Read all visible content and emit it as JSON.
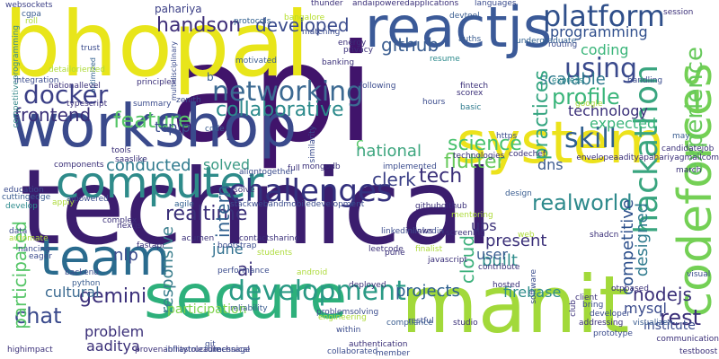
{
  "words": [
    {
      "text": "technical",
      "color": "#3b1d6e"
    },
    {
      "text": "api",
      "color": "#40146b"
    },
    {
      "text": "workshop",
      "color": "#3a4a8c"
    },
    {
      "text": "bhopal",
      "color": "#e8e51a"
    },
    {
      "text": "manit",
      "color": "#a2d93a"
    },
    {
      "text": "secure",
      "color": "#2db07b"
    },
    {
      "text": "system",
      "color": "#ece21c"
    },
    {
      "text": "reactjs",
      "color": "#3b5a98"
    },
    {
      "text": "codeforces",
      "color": "#74d055"
    },
    {
      "text": "team",
      "color": "#2a6b8e"
    },
    {
      "text": "computer",
      "color": "#2e8b8a"
    },
    {
      "text": "challenges",
      "color": "#34317e"
    },
    {
      "text": "development",
      "color": "#2a9a85"
    },
    {
      "text": "hackathon",
      "color": "#39a57f"
    },
    {
      "text": "platform",
      "color": "#2f4f8a"
    },
    {
      "text": "using",
      "color": "#3a4a8c"
    },
    {
      "text": "networking",
      "color": "#3c6a92"
    },
    {
      "text": "docker",
      "color": "#3b3f86"
    },
    {
      "text": "experience",
      "color": "#67c95b"
    },
    {
      "text": "skill",
      "color": "#2f5f8e"
    },
    {
      "text": "profile",
      "color": "#3ab57a"
    },
    {
      "text": "feature",
      "color": "#56c667"
    },
    {
      "text": "frontend",
      "color": "#3a2f78"
    },
    {
      "text": "collaborative",
      "color": "#2c8a8c"
    },
    {
      "text": "handson",
      "color": "#3d2d78"
    },
    {
      "text": "developed",
      "color": "#3b4c8d"
    },
    {
      "text": "github",
      "color": "#3a5d90"
    },
    {
      "text": "scalable",
      "color": "#2e7a8d"
    },
    {
      "text": "programming",
      "color": "#2f4e8c"
    },
    {
      "text": "coding",
      "color": "#3ab57a"
    },
    {
      "text": "technology",
      "color": "#3a2f78"
    },
    {
      "text": "practices",
      "color": "#34a580"
    },
    {
      "text": "expected",
      "color": "#3ab57a"
    },
    {
      "text": "science",
      "color": "#47c16e"
    },
    {
      "text": "flutter",
      "color": "#67c95b"
    },
    {
      "text": "national",
      "color": "#3ea67f"
    },
    {
      "text": "tech",
      "color": "#3a2f78"
    },
    {
      "text": "clerk",
      "color": "#3a3f86"
    },
    {
      "text": "realworld",
      "color": "#2e8a8c"
    },
    {
      "text": "dns",
      "color": "#3c5a8f"
    },
    {
      "text": "conducted",
      "color": "#2f7a8d"
    },
    {
      "text": "solved",
      "color": "#3a9a84"
    },
    {
      "text": "tcpip",
      "color": "#3b4c8d"
    },
    {
      "text": "realtime",
      "color": "#3a2f78"
    },
    {
      "text": "gemini",
      "color": "#3b2f7a"
    },
    {
      "text": "projects",
      "color": "#2c5e8d"
    },
    {
      "text": "firebase",
      "color": "#2f8d8b"
    },
    {
      "text": "nodejs",
      "color": "#3a2f78"
    },
    {
      "text": "mysql",
      "color": "#3b4c8d"
    },
    {
      "text": "chat",
      "color": "#3a4a8c"
    },
    {
      "text": "problem",
      "color": "#3a2f78"
    },
    {
      "text": "aaditya",
      "color": "#3a2f78"
    },
    {
      "text": "cultural",
      "color": "#3b6a91"
    },
    {
      "text": "participated",
      "color": "#55c567"
    },
    {
      "text": "responsive",
      "color": "#3a7e8d"
    },
    {
      "text": "cloud",
      "color": "#3bb07b"
    },
    {
      "text": "competitive",
      "color": "#2c4f8b"
    },
    {
      "text": "designed",
      "color": "#2e7a8d"
    },
    {
      "text": "built",
      "color": "#2f8d8b"
    },
    {
      "text": "present",
      "color": "#3a2f78"
    },
    {
      "text": "user",
      "color": "#3a5d90"
    },
    {
      "text": "ai",
      "color": "#3a2f78"
    },
    {
      "text": "nlp",
      "color": "#3b4c8d"
    },
    {
      "text": "june",
      "color": "#2f6f8e"
    },
    {
      "text": "intern",
      "color": "#2f5f8e"
    },
    {
      "text": "ubs",
      "color": "#3a2f78"
    },
    {
      "text": "rest",
      "color": "#3a2f78"
    },
    {
      "text": "institute",
      "color": "#3b4c8d"
    },
    {
      "text": "participation",
      "color": "#7fd34e"
    },
    {
      "text": "pahariya",
      "color": "#3b3f86"
    },
    {
      "text": "c",
      "color": "#55c567"
    },
    {
      "text": "b",
      "color": "#3a5d90"
    },
    {
      "text": "websockets",
      "color": "#3b3f86"
    },
    {
      "text": "cgpa",
      "color": "#3a5d90"
    },
    {
      "text": "roll",
      "color": "#aedb3c"
    },
    {
      "text": "competitiveprogramming",
      "color": "#3a8a8c"
    },
    {
      "text": "trust",
      "color": "#3b4c8d"
    },
    {
      "text": "optimized",
      "color": "#2f5f8e"
    },
    {
      "text": "integration",
      "color": "#3b4c8d"
    },
    {
      "text": "detailoriented",
      "color": "#aedb3c"
    },
    {
      "text": "principles",
      "color": "#3a2f78"
    },
    {
      "text": "multidisciplinary",
      "color": "#3b4c8d"
    },
    {
      "text": "motivated",
      "color": "#3a5d90"
    },
    {
      "text": "protocols",
      "color": "#2f5f8e"
    },
    {
      "text": "bangalore",
      "color": "#b5de2b"
    },
    {
      "text": "thunder",
      "color": "#3a2f78"
    },
    {
      "text": "andaipoweredapplications",
      "color": "#3a2f78"
    },
    {
      "text": "languages",
      "color": "#3b4c8d"
    },
    {
      "text": "devtool",
      "color": "#3a5d90"
    },
    {
      "text": "matching",
      "color": "#3b4c8d"
    },
    {
      "text": "energy",
      "color": "#3a2f78"
    },
    {
      "text": "privacy",
      "color": "#3a2f78"
    },
    {
      "text": "banking",
      "color": "#3a2f78"
    },
    {
      "text": "auths",
      "color": "#3a5d90"
    },
    {
      "text": "resume",
      "color": "#2c8a8c"
    },
    {
      "text": "undergraduate",
      "color": "#2f5f8e"
    },
    {
      "text": "routing",
      "color": "#3b4c8d"
    },
    {
      "text": "handling",
      "color": "#3b4c8d"
    },
    {
      "text": "session",
      "color": "#3a2f78"
    },
    {
      "text": "express",
      "color": "#2c8a8c"
    },
    {
      "text": "google",
      "color": "#aedb3c"
    },
    {
      "text": "fintech",
      "color": "#3a2f78"
    },
    {
      "text": "scorex",
      "color": "#3a2f78"
    },
    {
      "text": "following",
      "color": "#3b4c8d"
    },
    {
      "text": "hours",
      "color": "#3b4c8d"
    },
    {
      "text": "basic",
      "color": "#2f7a8d"
    },
    {
      "text": "zenith",
      "color": "#3b4c8d"
    },
    {
      "text": "summary",
      "color": "#3b4c8d"
    },
    {
      "text": "nationallevel",
      "color": "#3a2f78"
    },
    {
      "text": "typescript",
      "color": "#3a2f78"
    },
    {
      "text": "tools",
      "color": "#3a2f78"
    },
    {
      "text": "saaslike",
      "color": "#3a2f78"
    },
    {
      "text": "code",
      "color": "#3a5d90"
    },
    {
      "text": "similarity",
      "color": "#3b4c8d"
    },
    {
      "text": "https",
      "color": "#3b4c8d"
    },
    {
      "text": "technologies",
      "color": "#3a2f78"
    },
    {
      "text": "codechef",
      "color": "#3a2f78"
    },
    {
      "text": "may",
      "color": "#3a5d90"
    },
    {
      "text": "candidatejob",
      "color": "#3a2f78"
    },
    {
      "text": "envelopeaadityapahariyagmailcom",
      "color": "#3a2f78"
    },
    {
      "text": "march",
      "color": "#3a2f78"
    },
    {
      "text": "components",
      "color": "#3a2f78"
    },
    {
      "text": "cuttingedge",
      "color": "#3a5d90"
    },
    {
      "text": "full",
      "color": "#3a2f78"
    },
    {
      "text": "mongodb",
      "color": "#3a2f78"
    },
    {
      "text": "implemented",
      "color": "#3b4c8d"
    },
    {
      "text": "aligntogether",
      "color": "#3b4c8d"
    },
    {
      "text": "education",
      "color": "#3b4c8d"
    },
    {
      "text": "develop",
      "color": "#2c8a8c"
    },
    {
      "text": "apply",
      "color": "#aedb3c"
    },
    {
      "text": "aipowered",
      "color": "#3b4c8d"
    },
    {
      "text": "agile",
      "color": "#2f5f8e"
    },
    {
      "text": "solve",
      "color": "#3a2f78"
    },
    {
      "text": "stackwebandmobiledevelopment",
      "color": "#3b4c8d"
    },
    {
      "text": "githubgithub",
      "color": "#3a2f78"
    },
    {
      "text": "design",
      "color": "#3a5d90"
    },
    {
      "text": "mentoring",
      "color": "#aedb3c"
    },
    {
      "text": "data",
      "color": "#3b4c8d"
    },
    {
      "text": "complex",
      "color": "#3a2f78"
    },
    {
      "text": "nextjs",
      "color": "#3a2f78"
    },
    {
      "text": "linkedinlinkedin",
      "color": "#3b4c8d"
    },
    {
      "text": "acumen",
      "color": "#3a2f78"
    },
    {
      "text": "screening",
      "color": "#3a2f78"
    },
    {
      "text": "aws",
      "color": "#3a2f78"
    },
    {
      "text": "web",
      "color": "#aedb3c"
    },
    {
      "text": "shadcn",
      "color": "#3a2f78"
    },
    {
      "text": "automate",
      "color": "#aedb3c"
    },
    {
      "text": "nancing",
      "color": "#3b4c8d"
    },
    {
      "text": "eager",
      "color": "#3b4c8d"
    },
    {
      "text": "fastapi",
      "color": "#3a2f78"
    },
    {
      "text": "contactsharing",
      "color": "#3a2f78"
    },
    {
      "text": "bootstrap",
      "color": "#3b4c8d"
    },
    {
      "text": "students",
      "color": "#aedb3c"
    },
    {
      "text": "leetcode",
      "color": "#3a2f78"
    },
    {
      "text": "finalist",
      "color": "#aedb3c"
    },
    {
      "text": "javascript",
      "color": "#3a2f78"
    },
    {
      "text": "pune",
      "color": "#3a2f78"
    },
    {
      "text": "contribute",
      "color": "#3a2f78"
    },
    {
      "text": "backend",
      "color": "#3b4c8d"
    },
    {
      "text": "performance",
      "color": "#3b4c8d"
    },
    {
      "text": "android",
      "color": "#aedb3c"
    },
    {
      "text": "software",
      "color": "#3b4c8d"
    },
    {
      "text": "visual",
      "color": "#3b4c8d"
    },
    {
      "text": "python",
      "color": "#3a5d90"
    },
    {
      "text": "deployed",
      "color": "#3a2f78"
    },
    {
      "text": "hosted",
      "color": "#3a2f78"
    },
    {
      "text": "otpbased",
      "color": "#3a2f78"
    },
    {
      "text": "client",
      "color": "#3a2f78"
    },
    {
      "text": "bring",
      "color": "#3b4c8d"
    },
    {
      "text": "reliability",
      "color": "#3a5d90"
    },
    {
      "text": "problemsolving",
      "color": "#3b4c8d"
    },
    {
      "text": "restful",
      "color": "#3b4c8d"
    },
    {
      "text": "engineering",
      "color": "#aedb3c"
    },
    {
      "text": "compliance",
      "color": "#3a5d90"
    },
    {
      "text": "studio",
      "color": "#3a2f78"
    },
    {
      "text": "club",
      "color": "#3a2f78"
    },
    {
      "text": "developer",
      "color": "#3b4c8d"
    },
    {
      "text": "addressing",
      "color": "#3a2f78"
    },
    {
      "text": "prototype",
      "color": "#3b4c8d"
    },
    {
      "text": "visualizer",
      "color": "#3a5d90"
    },
    {
      "text": "communication",
      "color": "#3a2f78"
    },
    {
      "text": "testboost",
      "color": "#3a2f78"
    },
    {
      "text": "highimpact",
      "color": "#3a2f78"
    },
    {
      "text": "provenabilitytoleadtechnical",
      "color": "#3a2f78"
    },
    {
      "text": "infrastructure",
      "color": "#3b4c8d"
    },
    {
      "text": "message",
      "color": "#3b4c8d"
    },
    {
      "text": "collaborated",
      "color": "#3b4c8d"
    },
    {
      "text": "authentication",
      "color": "#3a2f78"
    },
    {
      "text": "member",
      "color": "#3b4c8d"
    },
    {
      "text": "within",
      "color": "#3b4c8d"
    },
    {
      "text": "git",
      "color": "#3b4c8d"
    },
    {
      "text": "vs",
      "color": "#3b4c8d"
    }
  ]
}
